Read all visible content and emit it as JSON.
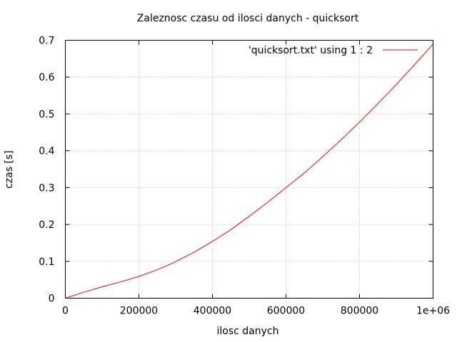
{
  "chart_data": {
    "type": "line",
    "title": "Zaleznosc czasu od ilosci danych - quicksort",
    "xlabel": "ilosc danych",
    "ylabel": "czas [s]",
    "xlim": [
      0,
      1000000
    ],
    "ylim": [
      0,
      0.7
    ],
    "grid": true,
    "legend_position": "top-right",
    "x_ticks": [
      {
        "value": 0,
        "label": "0"
      },
      {
        "value": 200000,
        "label": "200000"
      },
      {
        "value": 400000,
        "label": "400000"
      },
      {
        "value": 600000,
        "label": "600000"
      },
      {
        "value": 800000,
        "label": "800000"
      },
      {
        "value": 1000000,
        "label": "1e+06"
      }
    ],
    "y_ticks": [
      {
        "value": 0,
        "label": "0"
      },
      {
        "value": 0.1,
        "label": "0.1"
      },
      {
        "value": 0.2,
        "label": "0.2"
      },
      {
        "value": 0.3,
        "label": "0.3"
      },
      {
        "value": 0.4,
        "label": "0.4"
      },
      {
        "value": 0.5,
        "label": "0.5"
      },
      {
        "value": 0.6,
        "label": "0.6"
      },
      {
        "value": 0.7,
        "label": "0.7"
      }
    ],
    "series": [
      {
        "name": "'quicksort.txt' using 1 : 2",
        "color": "#ff0000",
        "x": [
          0,
          50000,
          100000,
          150000,
          200000,
          250000,
          300000,
          350000,
          400000,
          450000,
          500000,
          550000,
          600000,
          650000,
          700000,
          750000,
          800000,
          850000,
          900000,
          950000,
          1000000
        ],
        "y": [
          0,
          0.016,
          0.031,
          0.044,
          0.059,
          0.077,
          0.099,
          0.125,
          0.154,
          0.186,
          0.222,
          0.26,
          0.3,
          0.34,
          0.384,
          0.43,
          0.478,
          0.528,
          0.58,
          0.634,
          0.69
        ]
      }
    ]
  }
}
